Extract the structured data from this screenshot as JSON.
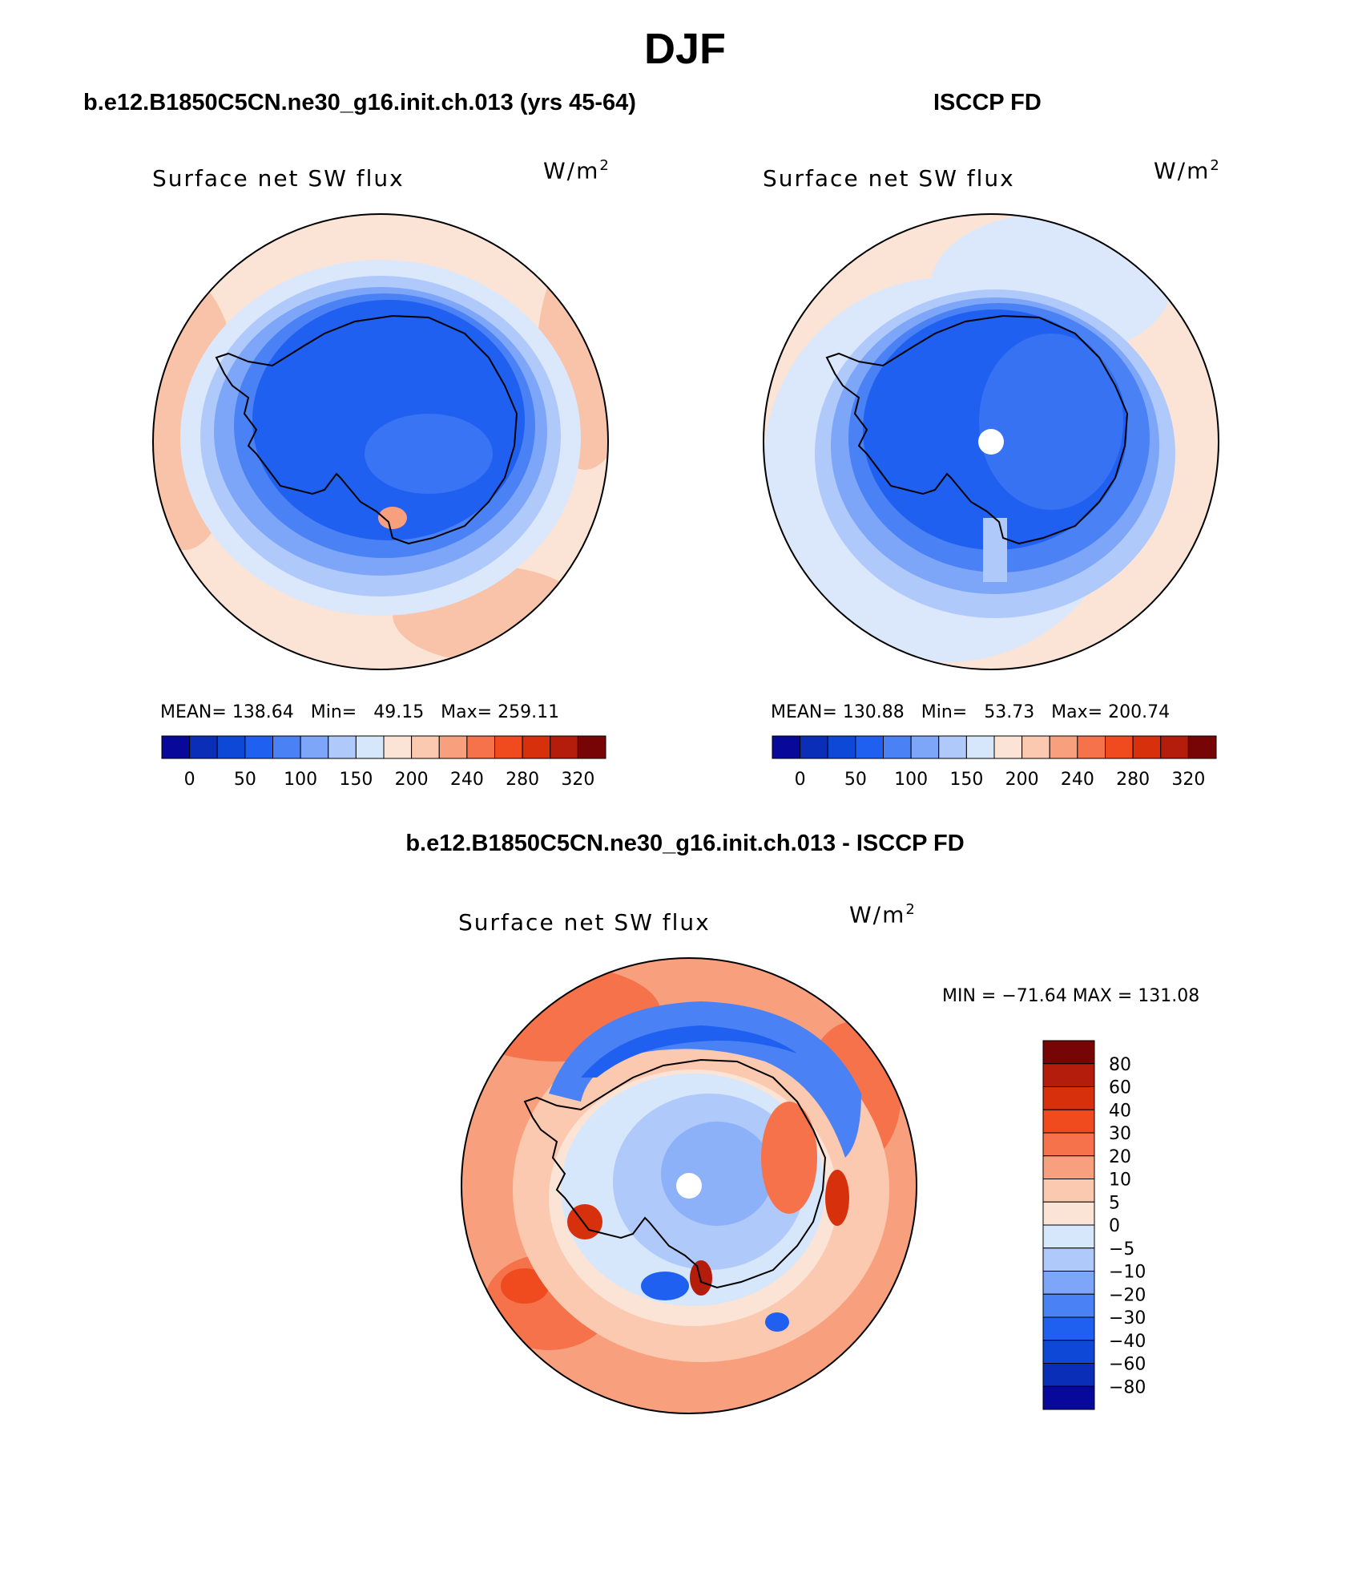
{
  "page_title": "DJF",
  "colors": {
    "diverging_16": [
      "#08089a",
      "#0b2eb8",
      "#0d48d6",
      "#1f60f0",
      "#4a82f5",
      "#7ea6f8",
      "#b0c9fb",
      "#d6e6fb",
      "#fbe4d6",
      "#fbc9b0",
      "#f8a07e",
      "#f5724a",
      "#f04a1f",
      "#d6300d",
      "#b41c0b",
      "#780505"
    ]
  },
  "panels": [
    {
      "title": "b.e12.B1850C5CN.ne30_g16.init.ch.013 (yrs 45-64)",
      "field": "Surface net SW flux",
      "units_base": "W/m",
      "units_exp": "2",
      "stats": "MEAN= 138.64   Min=   49.15   Max= 259.11",
      "colorbar_ticks": [
        "0",
        "50",
        "100",
        "150",
        "200",
        "240",
        "280",
        "320"
      ]
    },
    {
      "title": "ISCCP FD",
      "field": "Surface net SW flux",
      "units_base": "W/m",
      "units_exp": "2",
      "stats": "MEAN= 130.88   Min=   53.73   Max= 200.74",
      "colorbar_ticks": [
        "0",
        "50",
        "100",
        "150",
        "200",
        "240",
        "280",
        "320"
      ]
    }
  ],
  "diff_panel": {
    "title": "b.e12.B1850C5CN.ne30_g16.init.ch.013 - ISCCP FD",
    "field": "Surface net SW flux",
    "units_base": "W/m",
    "units_exp": "2",
    "minmax": "MIN = −71.64 MAX = 131.08",
    "colorbar_ticks": [
      "80",
      "60",
      "40",
      "30",
      "20",
      "10",
      "5",
      "0",
      "−5",
      "−10",
      "−20",
      "−30",
      "−40",
      "−60",
      "−80"
    ]
  },
  "chart_data": [
    {
      "type": "heatmap",
      "projection": "south polar stereographic",
      "title": "b.e12.B1850C5CN.ne30_g16.init.ch.013 (yrs 45-64)",
      "variable": "Surface net SW flux",
      "units": "W/m2",
      "mean": 138.64,
      "min": 49.15,
      "max": 259.11,
      "contour_levels": [
        0,
        25,
        50,
        75,
        100,
        125,
        150,
        175,
        200,
        220,
        240,
        260,
        280,
        300,
        320
      ],
      "colorbar_ticks": [
        0,
        50,
        100,
        150,
        200,
        240,
        280,
        320
      ]
    },
    {
      "type": "heatmap",
      "projection": "south polar stereographic",
      "title": "ISCCP FD",
      "variable": "Surface net SW flux",
      "units": "W/m2",
      "mean": 130.88,
      "min": 53.73,
      "max": 200.74,
      "contour_levels": [
        0,
        25,
        50,
        75,
        100,
        125,
        150,
        175,
        200,
        220,
        240,
        260,
        280,
        300,
        320
      ],
      "colorbar_ticks": [
        0,
        50,
        100,
        150,
        200,
        240,
        280,
        320
      ]
    },
    {
      "type": "heatmap",
      "projection": "south polar stereographic",
      "title": "b.e12.B1850C5CN.ne30_g16.init.ch.013 - ISCCP FD",
      "variable": "Surface net SW flux",
      "units": "W/m2",
      "min": -71.64,
      "max": 131.08,
      "contour_levels": [
        -80,
        -60,
        -40,
        -30,
        -20,
        -10,
        -5,
        0,
        5,
        10,
        20,
        30,
        40,
        60,
        80
      ],
      "colorbar_ticks": [
        80,
        60,
        40,
        30,
        20,
        10,
        5,
        0,
        -5,
        -10,
        -20,
        -30,
        -40,
        -60,
        -80
      ]
    }
  ]
}
